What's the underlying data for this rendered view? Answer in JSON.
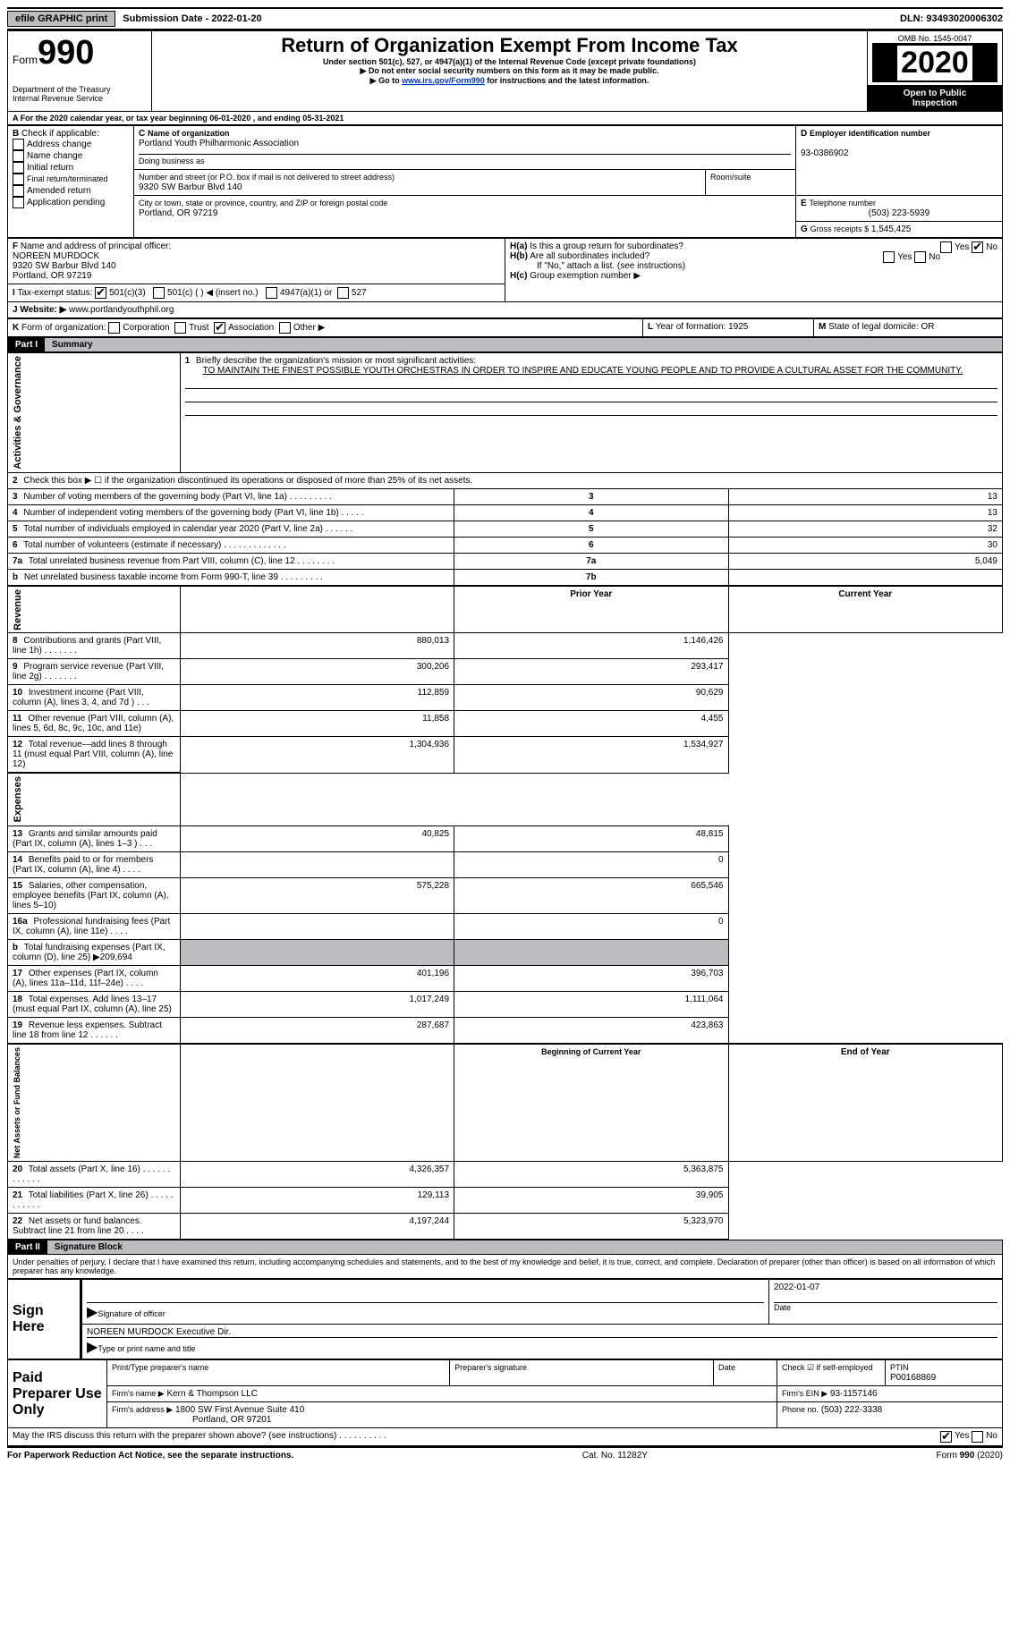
{
  "top": {
    "efile": "efile GRAPHIC print",
    "submission": "Submission Date - 2022-01-20",
    "dln": "DLN: 93493020006302"
  },
  "header": {
    "form_word": "Form",
    "form_no": "990",
    "dept1": "Department of the Treasury",
    "dept2": "Internal Revenue Service",
    "title": "Return of Organization Exempt From Income Tax",
    "sub1": "Under section 501(c), 527, or 4947(a)(1) of the Internal Revenue Code (except private foundations)",
    "sub2": "▶ Do not enter social security numbers on this form as it may be made public.",
    "sub3a": "▶ Go to ",
    "sub3_link": "www.irs.gov/Form990",
    "sub3b": " for instructions and the latest information.",
    "omb": "OMB No. 1545-0047",
    "year": "2020",
    "open1": "Open to Public",
    "open2": "Inspection"
  },
  "line_a": "For the 2020 calendar year, or tax year beginning 06-01-2020   , and ending 05-31-2021",
  "box_b": {
    "label": "Check if applicable:",
    "opts": [
      "Address change",
      "Name change",
      "Initial return",
      "Final return/terminated",
      "Amended return",
      "Application pending"
    ],
    "letter": "B"
  },
  "box_c": {
    "name_label": "Name of organization",
    "name": "Portland Youth Philharmonic Association",
    "dba_label": "Doing business as",
    "street_label": "Number and street (or P.O. box if mail is not delivered to street address)",
    "room_label": "Room/suite",
    "street": "9320 SW Barbur Blvd 140",
    "city_label": "City or town, state or province, country, and ZIP or foreign postal code",
    "city": "Portland, OR  97219",
    "letter": "C"
  },
  "box_d": {
    "label": "Employer identification number",
    "value": "93-0386902",
    "letter": "D"
  },
  "box_e": {
    "label": "Telephone number",
    "value": "(503) 223-5939",
    "letter": "E"
  },
  "box_g": {
    "label": "Gross receipts $",
    "value": "1,545,425",
    "letter": "G"
  },
  "box_f": {
    "label": "Name and address of principal officer:",
    "line1": "NOREEN MURDOCK",
    "line2": "9320 SW Barbur Blvd 140",
    "line3": "Portland, OR  97219",
    "letter": "F"
  },
  "box_h": {
    "a": "Is this a group return for subordinates?",
    "b": "Are all subordinates included?",
    "note": "If \"No,\" attach a list. (see instructions)",
    "c": "Group exemption number ▶",
    "ha": "H(a)",
    "hb": "H(b)",
    "hc": "H(c)",
    "yes": "Yes",
    "no": "No"
  },
  "line_i": {
    "letter": "I",
    "label": "Tax-exempt status:",
    "o1": "501(c)(3)",
    "o2": "501(c) (  ) ◀ (insert no.)",
    "o3": "4947(a)(1) or",
    "o4": "527"
  },
  "line_j": {
    "letter": "J",
    "label": "Website: ▶",
    "value": "www.portlandyouthphil.org"
  },
  "line_k": {
    "letter": "K",
    "label": "Form of organization:",
    "opts": [
      "Corporation",
      "Trust",
      "Association",
      "Other ▶"
    ],
    "checked_idx": 2
  },
  "line_l": {
    "letter": "L",
    "label": "Year of formation:",
    "value": "1925"
  },
  "line_m": {
    "letter": "M",
    "label": "State of legal domicile:",
    "value": "OR"
  },
  "part1": {
    "num": "Part I",
    "title": "Summary"
  },
  "governance_label": "Activities & Governance",
  "revenue_label": "Revenue",
  "expenses_label": "Expenses",
  "netassets_label": "Net Assets or Fund Balances",
  "line1": {
    "num": "1",
    "text": "Briefly describe the organization's mission or most significant activities:",
    "body": "TO MAINTAIN THE FINEST POSSIBLE YOUTH ORCHESTRAS IN ORDER TO INSPIRE AND EDUCATE YOUNG PEOPLE AND TO PROVIDE A CULTURAL ASSET FOR THE COMMUNITY."
  },
  "gov_rows": [
    {
      "n": "2",
      "text": "Check this box ▶ ☐  if the organization discontinued its operations or disposed of more than 25% of its net assets.",
      "box": "",
      "val": ""
    },
    {
      "n": "3",
      "text": "Number of voting members of the governing body (Part VI, line 1a)   .    .    .    .    .    .    .    .    .",
      "box": "3",
      "val": "13"
    },
    {
      "n": "4",
      "text": "Number of independent voting members of the governing body (Part VI, line 1b)  .    .    .    .    .",
      "box": "4",
      "val": "13"
    },
    {
      "n": "5",
      "text": "Total number of individuals employed in calendar year 2020 (Part V, line 2a)   .    .    .    .    .    .",
      "box": "5",
      "val": "32"
    },
    {
      "n": "6",
      "text": "Total number of volunteers (estimate if necessary)   .    .    .    .    .    .    .    .    .    .    .    .    .",
      "box": "6",
      "val": "30"
    },
    {
      "n": "7a",
      "text": "Total unrelated business revenue from Part VIII, column (C), line 12   .    .    .    .    .    .    .    .",
      "box": "7a",
      "val": "5,049"
    },
    {
      "n": "b",
      "text": "Net unrelated business taxable income from Form 990-T, line 39   .    .    .    .    .    .    .    .    .",
      "box": "7b",
      "val": ""
    }
  ],
  "col_hdr_prior": "Prior Year",
  "col_hdr_current": "Current Year",
  "rev_rows": [
    {
      "n": "8",
      "text": "Contributions and grants (Part VIII, line 1h)   .    .    .    .    .    .    .",
      "p": "880,013",
      "c": "1,146,426"
    },
    {
      "n": "9",
      "text": "Program service revenue (Part VIII, line 2g)   .    .    .    .    .    .    .",
      "p": "300,206",
      "c": "293,417"
    },
    {
      "n": "10",
      "text": "Investment income (Part VIII, column (A), lines 3, 4, and 7d )   .    .    .",
      "p": "112,859",
      "c": "90,629"
    },
    {
      "n": "11",
      "text": "Other revenue (Part VIII, column (A), lines 5, 6d, 8c, 9c, 10c, and 11e)",
      "p": "11,858",
      "c": "4,455"
    },
    {
      "n": "12",
      "text": "Total revenue—add lines 8 through 11 (must equal Part VIII, column (A), line 12)",
      "p": "1,304,936",
      "c": "1,534,927"
    }
  ],
  "exp_rows": [
    {
      "n": "13",
      "text": "Grants and similar amounts paid (Part IX, column (A), lines 1–3 )   .    .    .",
      "p": "40,825",
      "c": "48,815"
    },
    {
      "n": "14",
      "text": "Benefits paid to or for members (Part IX, column (A), line 4)   .    .    .    .",
      "p": "",
      "c": "0"
    },
    {
      "n": "15",
      "text": "Salaries, other compensation, employee benefits (Part IX, column (A), lines 5–10)",
      "p": "575,228",
      "c": "665,546"
    },
    {
      "n": "16a",
      "text": "Professional fundraising fees (Part IX, column (A), line 11e)   .    .    .    .",
      "p": "",
      "c": "0"
    },
    {
      "n": "b",
      "text": "Total fundraising expenses (Part IX, column (D), line 25) ▶209,694",
      "p": "shade",
      "c": "shade"
    },
    {
      "n": "17",
      "text": "Other expenses (Part IX, column (A), lines 11a–11d, 11f–24e)   .    .    .    .",
      "p": "401,196",
      "c": "396,703"
    },
    {
      "n": "18",
      "text": "Total expenses. Add lines 13–17 (must equal Part IX, column (A), line 25)",
      "p": "1,017,249",
      "c": "1,111,064"
    },
    {
      "n": "19",
      "text": "Revenue less expenses. Subtract line 18 from line 12   .    .    .    .    .    .",
      "p": "287,687",
      "c": "423,863"
    }
  ],
  "na_hdr_begin": "Beginning of Current Year",
  "na_hdr_end": "End of Year",
  "na_rows": [
    {
      "n": "20",
      "text": "Total assets (Part X, line 16)   .    .    .    .    .    .    .    .    .    .    .    .",
      "p": "4,326,357",
      "c": "5,363,875"
    },
    {
      "n": "21",
      "text": "Total liabilities (Part X, line 26)   .    .    .    .    .    .    .    .    .    .    .",
      "p": "129,113",
      "c": "39,905"
    },
    {
      "n": "22",
      "text": "Net assets or fund balances. Subtract line 21 from line 20   .    .    .    .",
      "p": "4,197,244",
      "c": "5,323,970"
    }
  ],
  "part2": {
    "num": "Part II",
    "title": "Signature Block"
  },
  "penalty": "Under penalties of perjury, I declare that I have examined this return, including accompanying schedules and statements, and to the best of my knowledge and belief, it is true, correct, and complete. Declaration of preparer (other than officer) is based on all information of which preparer has any knowledge.",
  "sign": {
    "label": "Sign Here",
    "sig_label": "Signature of officer",
    "date_label": "Date",
    "date": "2022-01-07",
    "name": "NOREEN MURDOCK  Executive Dir.",
    "type_label": "Type or print name and title"
  },
  "prep": {
    "label": "Paid Preparer Use Only",
    "h1": "Print/Type preparer's name",
    "h2": "Preparer's signature",
    "h3": "Date",
    "check_label": "Check ☑ if self-employed",
    "ptin_label": "PTIN",
    "ptin": "P00168869",
    "firm_name_label": "Firm's name  ▶",
    "firm_name": "Kern & Thompson LLC",
    "firm_ein_label": "Firm's EIN ▶",
    "firm_ein": "93-1157146",
    "firm_addr_label": "Firm's address ▶",
    "firm_addr1": "1800 SW First Avenue Suite 410",
    "firm_addr2": "Portland, OR  97201",
    "phone_label": "Phone no.",
    "phone": "(503) 222-3338"
  },
  "discuss": "May the IRS discuss this return with the preparer shown above? (see instructions)   .    .    .    .    .    .    .    .    .    .",
  "discuss_yes": "Yes",
  "discuss_no": "No",
  "footer": {
    "left": "For Paperwork Reduction Act Notice, see the separate instructions.",
    "mid": "Cat. No. 11282Y",
    "right": "Form 990 (2020)"
  }
}
